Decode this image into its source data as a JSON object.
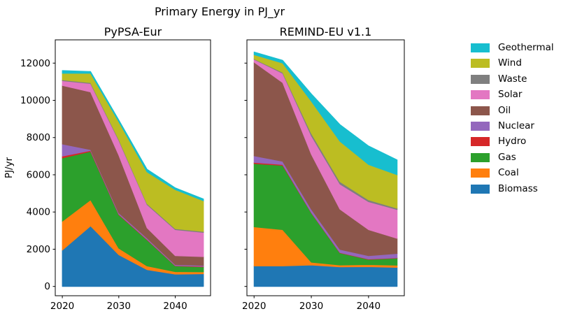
{
  "figure": {
    "suptitle": "Primary Energy in PJ_yr",
    "ylabel": "PJ/yr"
  },
  "legend": {
    "entries": [
      {
        "label": "Geothermal",
        "color": "#17becf"
      },
      {
        "label": "Wind",
        "color": "#bcbd22"
      },
      {
        "label": "Waste",
        "color": "#7f7f7f"
      },
      {
        "label": "Solar",
        "color": "#e377c2"
      },
      {
        "label": "Oil",
        "color": "#8c564b"
      },
      {
        "label": "Nuclear",
        "color": "#9467bd"
      },
      {
        "label": "Hydro",
        "color": "#d62728"
      },
      {
        "label": "Gas",
        "color": "#2ca02c"
      },
      {
        "label": "Coal",
        "color": "#ff7f0e"
      },
      {
        "label": "Biomass",
        "color": "#1f77b4"
      }
    ]
  },
  "chart_data": [
    {
      "type": "area",
      "stacked": true,
      "title": "PyPSA-Eur",
      "x": [
        2020,
        2025,
        2030,
        2035,
        2040,
        2045
      ],
      "xticks": [
        2020,
        2030,
        2040
      ],
      "yticks": [
        0,
        2000,
        4000,
        6000,
        8000,
        10000,
        12000
      ],
      "ytick_labels": true,
      "xlim": [
        2018.75,
        2046.25
      ],
      "ylim": [
        -500,
        13250
      ],
      "ylabel": "PJ/yr",
      "series": [
        {
          "name": "Biomass",
          "color": "#1f77b4",
          "values": [
            1950,
            3250,
            1700,
            900,
            660,
            680
          ]
        },
        {
          "name": "Coal",
          "color": "#ff7f0e",
          "values": [
            1550,
            1400,
            350,
            200,
            130,
            100
          ]
        },
        {
          "name": "Gas",
          "color": "#2ca02c",
          "values": [
            3400,
            2600,
            1800,
            1400,
            310,
            270
          ]
        },
        {
          "name": "Hydro",
          "color": "#d62728",
          "values": [
            100,
            50,
            30,
            30,
            20,
            30
          ]
        },
        {
          "name": "Nuclear",
          "color": "#9467bd",
          "values": [
            650,
            50,
            70,
            70,
            50,
            50
          ]
        },
        {
          "name": "Oil",
          "color": "#8c564b",
          "values": [
            3150,
            3100,
            3100,
            550,
            480,
            470
          ]
        },
        {
          "name": "Solar",
          "color": "#e377c2",
          "values": [
            250,
            450,
            800,
            1250,
            1400,
            1300
          ]
        },
        {
          "name": "Waste",
          "color": "#7f7f7f",
          "values": [
            50,
            50,
            50,
            50,
            50,
            50
          ]
        },
        {
          "name": "Wind",
          "color": "#bcbd22",
          "values": [
            350,
            500,
            950,
            1700,
            2100,
            1650
          ]
        },
        {
          "name": "Geothermal",
          "color": "#17becf",
          "values": [
            150,
            100,
            100,
            150,
            100,
            100
          ]
        }
      ]
    },
    {
      "type": "area",
      "stacked": true,
      "title": "REMIND-EU v1.1",
      "x": [
        2020,
        2025,
        2030,
        2035,
        2040,
        2045
      ],
      "xticks": [
        2020,
        2030,
        2040
      ],
      "yticks": [
        0,
        2000,
        4000,
        6000,
        8000,
        10000,
        12000
      ],
      "ytick_labels": false,
      "xlim": [
        2018.75,
        2046.25
      ],
      "ylim": [
        -500,
        13250
      ],
      "series": [
        {
          "name": "Biomass",
          "color": "#1f77b4",
          "values": [
            1100,
            1100,
            1150,
            1050,
            1060,
            1020
          ]
        },
        {
          "name": "Coal",
          "color": "#ff7f0e",
          "values": [
            2100,
            1950,
            150,
            100,
            110,
            120
          ]
        },
        {
          "name": "Gas",
          "color": "#2ca02c",
          "values": [
            3400,
            3450,
            2650,
            650,
            280,
            380
          ]
        },
        {
          "name": "Hydro",
          "color": "#d62728",
          "values": [
            60,
            50,
            20,
            20,
            20,
            20
          ]
        },
        {
          "name": "Nuclear",
          "color": "#9467bd",
          "values": [
            360,
            170,
            180,
            170,
            180,
            230
          ]
        },
        {
          "name": "Oil",
          "color": "#8c564b",
          "values": [
            5030,
            4230,
            2950,
            2160,
            1400,
            810
          ]
        },
        {
          "name": "Solar",
          "color": "#e377c2",
          "values": [
            150,
            500,
            1000,
            1350,
            1500,
            1550
          ]
        },
        {
          "name": "Waste",
          "color": "#7f7f7f",
          "values": [
            30,
            50,
            130,
            130,
            100,
            70
          ]
        },
        {
          "name": "Wind",
          "color": "#bcbd22",
          "values": [
            220,
            500,
            1720,
            2170,
            1900,
            1800
          ]
        },
        {
          "name": "Geothermal",
          "color": "#17becf",
          "values": [
            150,
            150,
            400,
            900,
            1000,
            800
          ]
        }
      ]
    }
  ]
}
